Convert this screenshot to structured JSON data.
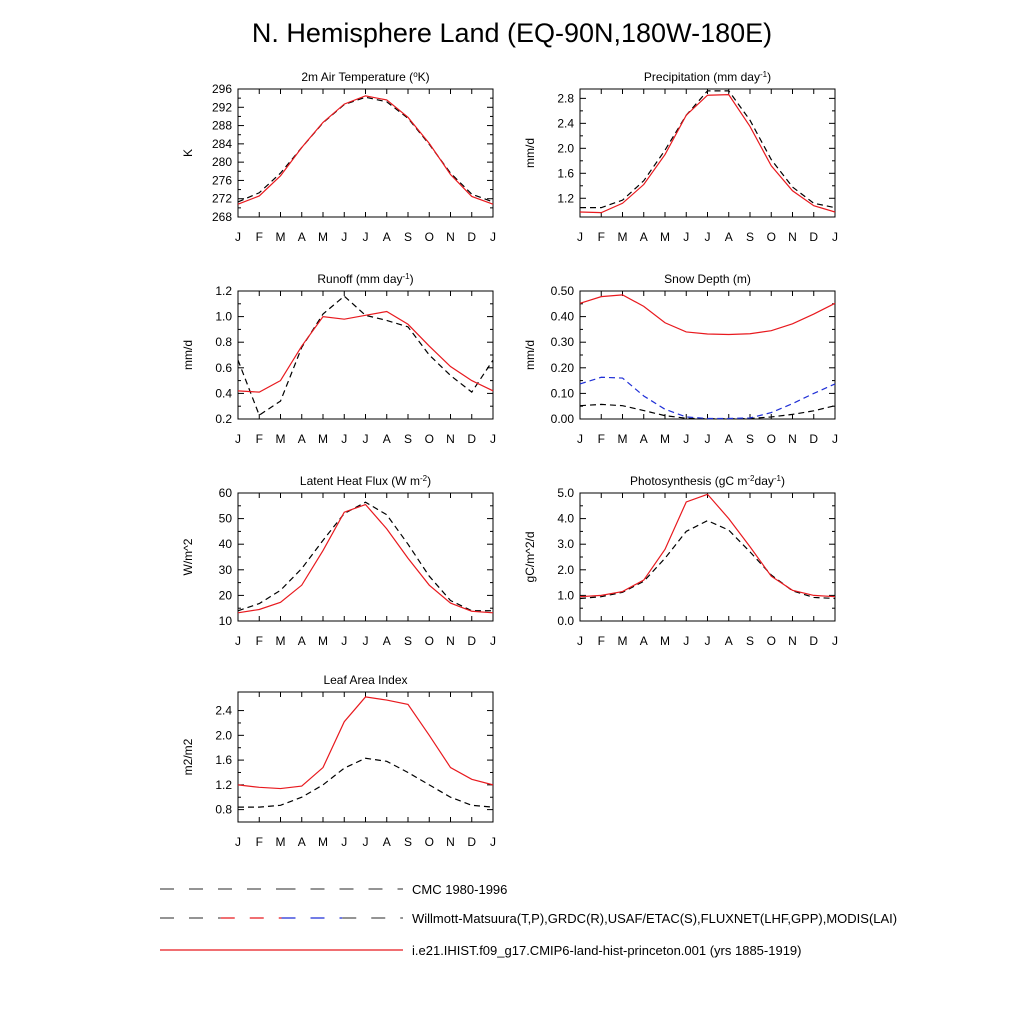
{
  "title": "N. Hemisphere Land (EQ-90N,180W-180E)",
  "colors": {
    "model": "#e8191e",
    "obs": "#000000",
    "obs_alt": "#1f2fd6",
    "axis": "#000000"
  },
  "months": [
    "J",
    "F",
    "M",
    "A",
    "M",
    "J",
    "J",
    "A",
    "S",
    "O",
    "N",
    "D",
    "J"
  ],
  "legend": [
    {
      "label": "CMC 1980-1996",
      "style": "dashed",
      "colors": [
        "#555555",
        "#555555"
      ]
    },
    {
      "label": "Willmott-Matsuura(T,P),GRDC(R),USAF/ETAC(S),FLUXNET(LHF,GPP),MODIS(LAI)",
      "style": "dashed",
      "colors": [
        "#555555",
        "#e8191e",
        "#1f2fd6",
        "#555555"
      ]
    },
    {
      "label": "i.e21.IHIST.f09_g17.CMIP6-land-hist-princeton.001 (yrs 1885-1919)",
      "style": "solid",
      "colors": [
        "#e8191e"
      ]
    }
  ],
  "chart_data": [
    {
      "type": "line",
      "title": "2m Air Temperature (",
      "title_parts": [
        {
          "t": "2m Air Temperature ("
        },
        {
          "t": "o",
          "sup": true
        },
        {
          "t": "K)"
        }
      ],
      "ylabel": "K",
      "ylim": [
        268,
        296
      ],
      "yticks": [
        268,
        272,
        276,
        280,
        284,
        288,
        292,
        296
      ],
      "yticklabels": [
        "268",
        "272",
        "276",
        "280",
        "284",
        "288",
        "292",
        "296"
      ],
      "x": [
        1,
        2,
        3,
        4,
        5,
        6,
        7,
        8,
        9,
        10,
        11,
        12,
        13
      ],
      "series": [
        {
          "color": "#000000",
          "style": "dashed",
          "values": [
            271.3,
            273.3,
            277.6,
            283.2,
            288.6,
            292.6,
            294.2,
            293.2,
            289.6,
            283.9,
            277.6,
            273.0,
            271.3
          ]
        },
        {
          "color": "#e8191e",
          "style": "solid",
          "values": [
            270.8,
            272.6,
            277.0,
            283.2,
            288.7,
            292.7,
            294.5,
            293.6,
            289.8,
            284.1,
            277.3,
            272.5,
            270.8
          ]
        }
      ]
    },
    {
      "type": "line",
      "title": "Precipitation (mm day",
      "title_parts": [
        {
          "t": "Precipitation (mm day"
        },
        {
          "t": "-1",
          "sup": true
        },
        {
          "t": ")"
        }
      ],
      "ylabel": "mm/d",
      "ylim": [
        0.9,
        2.95
      ],
      "yticks": [
        1.2,
        1.6,
        2.0,
        2.4,
        2.8
      ],
      "yticklabels": [
        "1.2",
        "1.6",
        "2.0",
        "2.4",
        "2.8"
      ],
      "x": [
        1,
        2,
        3,
        4,
        5,
        6,
        7,
        8,
        9,
        10,
        11,
        12,
        13
      ],
      "series": [
        {
          "color": "#000000",
          "style": "dashed",
          "values": [
            1.05,
            1.05,
            1.17,
            1.48,
            1.97,
            2.53,
            2.92,
            2.92,
            2.45,
            1.82,
            1.38,
            1.12,
            1.05
          ]
        },
        {
          "color": "#e8191e",
          "style": "solid",
          "values": [
            0.98,
            0.97,
            1.12,
            1.42,
            1.9,
            2.53,
            2.85,
            2.86,
            2.35,
            1.72,
            1.32,
            1.08,
            0.98
          ]
        }
      ]
    },
    {
      "type": "line",
      "title": "Runoff (mm day",
      "title_parts": [
        {
          "t": "Runoff (mm day"
        },
        {
          "t": "-1",
          "sup": true
        },
        {
          "t": ")"
        }
      ],
      "ylabel": "mm/d",
      "ylim": [
        0.2,
        1.2
      ],
      "yticks": [
        0.2,
        0.4,
        0.6,
        0.8,
        1.0,
        1.2
      ],
      "yticklabels": [
        "0.2",
        "0.4",
        "0.6",
        "0.8",
        "1.0",
        "1.2"
      ],
      "x": [
        1,
        2,
        3,
        4,
        5,
        6,
        7,
        8,
        9,
        10,
        11,
        12,
        13
      ],
      "series": [
        {
          "color": "#000000",
          "style": "dashed",
          "values": [
            0.66,
            0.23,
            0.34,
            0.76,
            1.02,
            1.16,
            1.01,
            0.97,
            0.92,
            0.7,
            0.54,
            0.41,
            0.66
          ]
        },
        {
          "color": "#e8191e",
          "style": "solid",
          "values": [
            0.42,
            0.41,
            0.5,
            0.77,
            1.0,
            0.98,
            1.01,
            1.04,
            0.94,
            0.77,
            0.61,
            0.5,
            0.42
          ]
        }
      ]
    },
    {
      "type": "line",
      "title": "Snow Depth (m)",
      "title_parts": [
        {
          "t": "Snow Depth (m)"
        }
      ],
      "ylabel": "mm/d",
      "ylim": [
        0.0,
        0.5
      ],
      "yticks": [
        0.0,
        0.1,
        0.2,
        0.3,
        0.4,
        0.5
      ],
      "yticklabels": [
        "0.00",
        "0.10",
        "0.20",
        "0.30",
        "0.40",
        "0.50"
      ],
      "x": [
        1,
        2,
        3,
        4,
        5,
        6,
        7,
        8,
        9,
        10,
        11,
        12,
        13
      ],
      "series": [
        {
          "color": "#000000",
          "style": "dashed",
          "values": [
            0.052,
            0.057,
            0.052,
            0.033,
            0.013,
            0.003,
            0.001,
            0.001,
            0.002,
            0.008,
            0.018,
            0.032,
            0.052
          ]
        },
        {
          "color": "#1f2fd6",
          "style": "dashed",
          "values": [
            0.137,
            0.163,
            0.16,
            0.09,
            0.038,
            0.008,
            0.002,
            0.002,
            0.004,
            0.025,
            0.06,
            0.1,
            0.137
          ]
        },
        {
          "color": "#e8191e",
          "style": "solid",
          "values": [
            0.452,
            0.478,
            0.485,
            0.44,
            0.376,
            0.34,
            0.332,
            0.33,
            0.333,
            0.345,
            0.372,
            0.41,
            0.452
          ]
        }
      ]
    },
    {
      "type": "line",
      "title": "Latent Heat Flux (W m",
      "title_parts": [
        {
          "t": "Latent Heat Flux (W m"
        },
        {
          "t": "-2",
          "sup": true
        },
        {
          "t": ")"
        }
      ],
      "ylabel": "W/m^2",
      "ylim": [
        10,
        60
      ],
      "yticks": [
        10,
        20,
        30,
        40,
        50,
        60
      ],
      "yticklabels": [
        "10",
        "20",
        "30",
        "40",
        "50",
        "60"
      ],
      "x": [
        1,
        2,
        3,
        4,
        5,
        6,
        7,
        8,
        9,
        10,
        11,
        12,
        13
      ],
      "series": [
        {
          "color": "#000000",
          "style": "dashed",
          "values": [
            14.0,
            16.8,
            22.0,
            30.5,
            41.5,
            52.0,
            56.4,
            51.5,
            40.0,
            27.5,
            18.0,
            14.0,
            14.0
          ]
        },
        {
          "color": "#e8191e",
          "style": "solid",
          "values": [
            13.2,
            14.5,
            17.3,
            24.0,
            37.5,
            52.5,
            55.5,
            46.0,
            34.5,
            24.0,
            17.0,
            13.8,
            13.2
          ]
        }
      ]
    },
    {
      "type": "line",
      "title": "Photosynthesis (gC m",
      "title_parts": [
        {
          "t": "Photosynthesis (gC m"
        },
        {
          "t": "-2",
          "sup": true
        },
        {
          "t": "day"
        },
        {
          "t": "-1",
          "sup": true
        },
        {
          "t": ")"
        }
      ],
      "ylabel": "gC/m^2/d",
      "ylim": [
        0.0,
        5.0
      ],
      "yticks": [
        0.0,
        1.0,
        2.0,
        3.0,
        4.0,
        5.0
      ],
      "yticklabels": [
        "0.0",
        "1.0",
        "2.0",
        "3.0",
        "4.0",
        "5.0"
      ],
      "x": [
        1,
        2,
        3,
        4,
        5,
        6,
        7,
        8,
        9,
        10,
        11,
        12,
        13
      ],
      "series": [
        {
          "color": "#000000",
          "style": "dashed",
          "values": [
            0.88,
            0.95,
            1.12,
            1.55,
            2.45,
            3.5,
            3.92,
            3.55,
            2.7,
            1.8,
            1.18,
            0.92,
            0.88
          ]
        },
        {
          "color": "#e8191e",
          "style": "solid",
          "values": [
            0.95,
            1.0,
            1.15,
            1.6,
            2.8,
            4.65,
            4.95,
            4.0,
            2.9,
            1.75,
            1.2,
            1.0,
            0.95
          ]
        }
      ]
    },
    {
      "type": "line",
      "title": "Leaf Area Index",
      "title_parts": [
        {
          "t": "Leaf Area Index"
        }
      ],
      "ylabel": "m2/m2",
      "ylim": [
        0.6,
        2.7
      ],
      "yticks": [
        0.8,
        1.2,
        1.6,
        2.0,
        2.4
      ],
      "yticklabels": [
        "0.8",
        "1.2",
        "1.6",
        "2.0",
        "2.4"
      ],
      "x": [
        1,
        2,
        3,
        4,
        5,
        6,
        7,
        8,
        9,
        10,
        11,
        12,
        13
      ],
      "series": [
        {
          "color": "#000000",
          "style": "dashed",
          "values": [
            0.84,
            0.84,
            0.87,
            1.0,
            1.2,
            1.47,
            1.63,
            1.58,
            1.4,
            1.2,
            1.0,
            0.87,
            0.84
          ]
        },
        {
          "color": "#e8191e",
          "style": "solid",
          "values": [
            1.2,
            1.16,
            1.14,
            1.18,
            1.48,
            2.22,
            2.62,
            2.57,
            2.5,
            2.0,
            1.48,
            1.29,
            1.2
          ]
        }
      ]
    }
  ]
}
